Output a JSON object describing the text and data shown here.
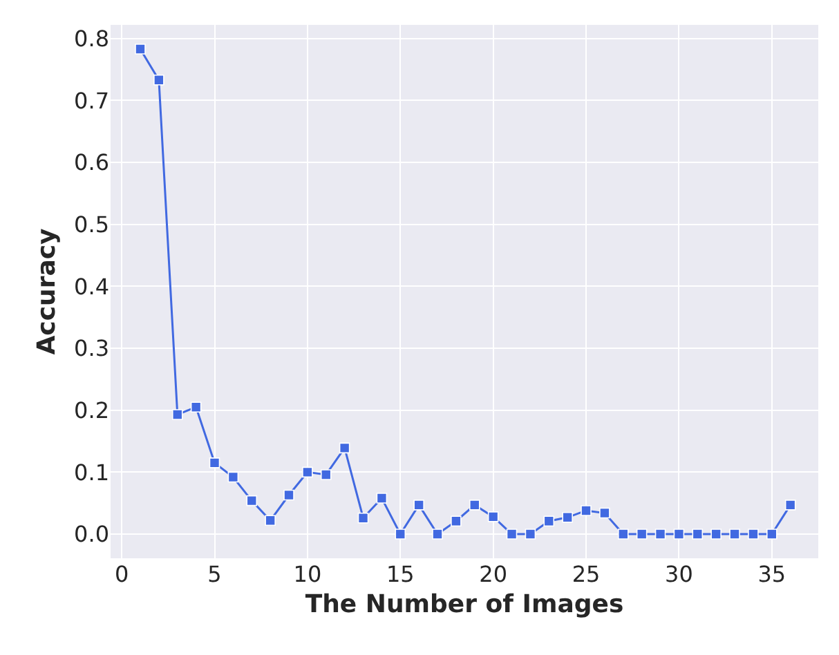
{
  "chart_data": {
    "type": "line",
    "xlabel": "The Number of Images",
    "ylabel": "Accuracy",
    "x": [
      1,
      2,
      3,
      4,
      5,
      6,
      7,
      8,
      9,
      10,
      11,
      12,
      13,
      14,
      15,
      16,
      17,
      18,
      19,
      20,
      21,
      22,
      23,
      24,
      25,
      26,
      27,
      28,
      29,
      30,
      31,
      32,
      33,
      34,
      35,
      36
    ],
    "series": [
      {
        "color": "#4169e1",
        "values": [
          0.783,
          0.733,
          0.193,
          0.205,
          0.115,
          0.092,
          0.054,
          0.022,
          0.063,
          0.1,
          0.096,
          0.139,
          0.026,
          0.058,
          0,
          0.047,
          0,
          0.021,
          0.047,
          0.028,
          0,
          0,
          0.021,
          0.027,
          0.038,
          0.034,
          0,
          0,
          0,
          0,
          0,
          0,
          0,
          0,
          0,
          0.047
        ]
      }
    ],
    "xlim": [
      -0.6,
      37.5
    ],
    "xticks": [
      0,
      5,
      10,
      15,
      20,
      25,
      30,
      35
    ],
    "ylim": [
      -0.039,
      0.822
    ],
    "yticks": [
      {
        "value": 0,
        "label": "0.0"
      },
      0.1,
      0.2,
      0.3,
      0.4,
      0.5,
      0.6,
      0.7,
      0.8
    ],
    "grid": true,
    "marker": "square",
    "line_style": "solid",
    "legend": false
  }
}
